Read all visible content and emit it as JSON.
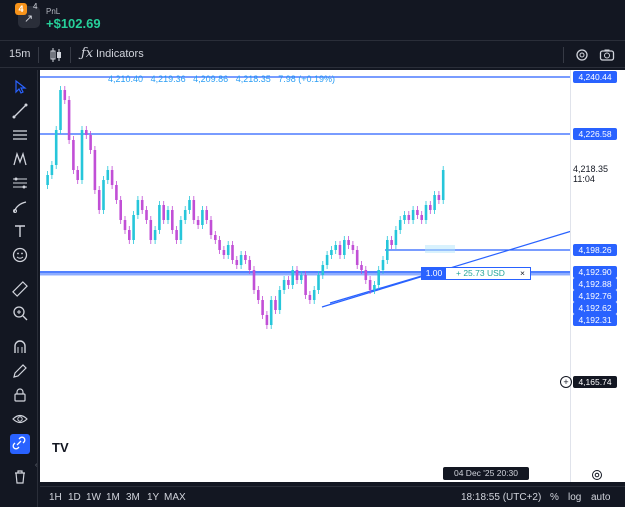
{
  "header": {
    "badge_num": "4",
    "pnl_label": "PnL",
    "pnl_value": "+$102.69"
  },
  "toolbar": {
    "timeframe": "15m",
    "indicators_label": "Indicators"
  },
  "chart": {
    "ohlc": [
      "4,210.40",
      "4,219.36",
      "4,209.86",
      "4,218.35",
      "7.98 (+0.19%)"
    ],
    "price_tags": [
      "4,240.44",
      "4,226.58",
      "4,198.26",
      "4,192.90",
      "4,192.88",
      "4,192.76",
      "4,192.62",
      "4,192.31"
    ],
    "last_price": "4,218.35",
    "countdown": "11:04",
    "crosshair_price": "4,165.74",
    "position": {
      "qty": "1.00",
      "pl": "+ 25.73 USD",
      "close": "×"
    },
    "date_label": "04 Dec '25   20:30",
    "logo": "TV"
  },
  "bottom": {
    "ranges": [
      "1H",
      "1D",
      "1W",
      "1M",
      "3M",
      "1Y",
      "MAX"
    ],
    "clock": "18:18:55 (UTC+2)",
    "percent": "%",
    "log": "log",
    "auto": "auto"
  },
  "colors": {
    "bull": "#26c6da",
    "bear": "#c14fd6",
    "line": "#2962ff",
    "pnl": "#26d09a"
  },
  "icons": {
    "sidebar": [
      "cursor-icon",
      "trend-line-icon",
      "horizontal-lines-icon",
      "pattern-icon",
      "fib-icon",
      "brush-icon",
      "text-icon",
      "emoji-icon",
      "ruler-icon",
      "zoom-in-icon",
      "magnet-icon",
      "lock-pencil-icon",
      "lock-icon",
      "eye-icon",
      "link-icon",
      "trash-icon"
    ]
  }
}
